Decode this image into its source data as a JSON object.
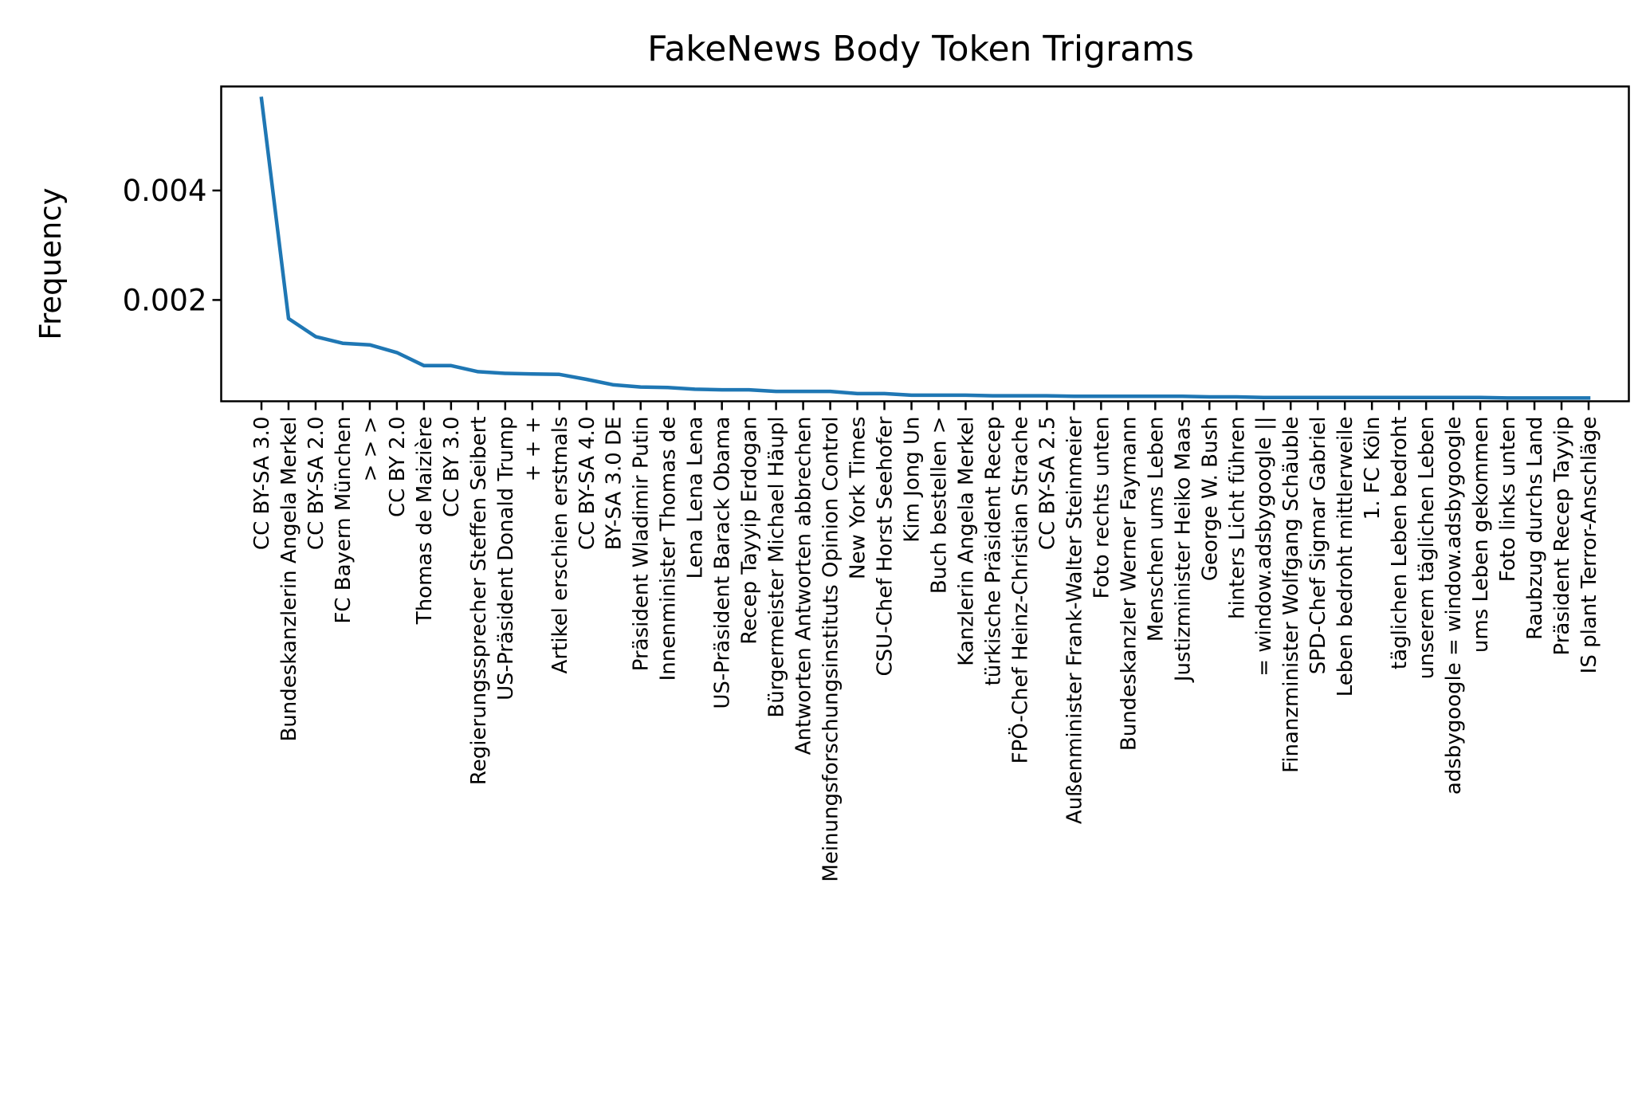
{
  "chart_data": {
    "type": "line",
    "title": "FakeNews Body Token Trigrams",
    "xlabel": "",
    "ylabel": "Frequency",
    "ylim": [
      0.00015,
      0.0059
    ],
    "yticks": [
      0.002,
      0.004
    ],
    "ytick_labels": [
      "0.002",
      "0.004"
    ],
    "grid": false,
    "legend": "none",
    "line_color": "#1f77b4",
    "categories": [
      "CC BY-SA 3.0",
      "Bundeskanzlerin Angela Merkel",
      "CC BY-SA 2.0",
      "FC Bayern München",
      "> > >",
      "CC BY 2.0",
      "Thomas de Maizière",
      "CC BY 3.0",
      "Regierungssprecher Steffen Seibert",
      "US-Präsident Donald Trump",
      "+ + +",
      "Artikel erschien erstmals",
      "CC BY-SA 4.0",
      "BY-SA 3.0 DE",
      "Präsident Wladimir Putin",
      "Innenminister Thomas de",
      "Lena Lena Lena",
      "US-Präsident Barack Obama",
      "Recep Tayyip Erdogan",
      "Bürgermeister Michael Häupl",
      "Antworten Antworten abbrechen",
      "Meinungsforschungsinstituts Opinion Control",
      "New York Times",
      "CSU-Chef Horst Seehofer",
      "Kim Jong Un",
      "Buch bestellen >",
      "Kanzlerin Angela Merkel",
      "türkische Präsident Recep",
      "FPÖ-Chef Heinz-Christian Strache",
      "CC BY-SA 2.5",
      "Außenminister Frank-Walter Steinmeier",
      "Foto rechts unten",
      "Bundeskanzler Werner Faymann",
      "Menschen ums Leben",
      "Justizminister Heiko Maas",
      "George W. Bush",
      "hinters Licht führen",
      "= window.adsbygoogle ||",
      "Finanzminister Wolfgang Schäuble",
      "SPD-Chef Sigmar Gabriel",
      "Leben bedroht mittlerweile",
      "1. FC Köln",
      "täglichen Leben bedroht",
      "unserem täglichen Leben",
      "adsbygoogle = window.adsbygoogle",
      "ums Leben gekommen",
      "Foto links unten",
      "Raubzug durchs Land",
      "Präsident Recep Tayyip",
      "IS plant Terror-Anschläge"
    ],
    "values": [
      0.00568,
      0.00166,
      0.00133,
      0.00121,
      0.00118,
      0.00104,
      0.0008,
      0.0008,
      0.00069,
      0.00066,
      0.00065,
      0.00064,
      0.00055,
      0.00045,
      0.00041,
      0.0004,
      0.00037,
      0.00036,
      0.00036,
      0.00033,
      0.00033,
      0.00033,
      0.00029,
      0.00029,
      0.00026,
      0.00026,
      0.00026,
      0.00025,
      0.00025,
      0.00025,
      0.00024,
      0.00024,
      0.00024,
      0.00024,
      0.00024,
      0.00023,
      0.00023,
      0.00022,
      0.00022,
      0.00022,
      0.00022,
      0.00022,
      0.00022,
      0.00022,
      0.00022,
      0.00022,
      0.00021,
      0.00021,
      0.00021,
      0.00021
    ]
  }
}
